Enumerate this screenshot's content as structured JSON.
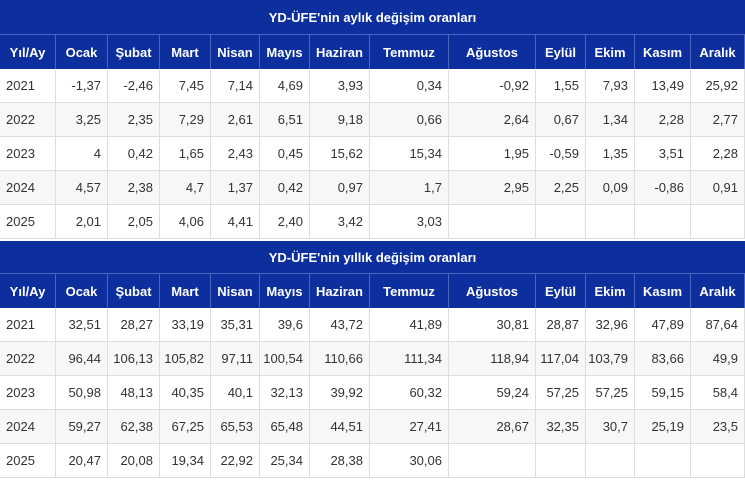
{
  "tables": [
    {
      "title": "YD-ÜFE'nin aylık değişim oranları",
      "headers": [
        "Yıl/Ay",
        "Ocak",
        "Şubat",
        "Mart",
        "Nisan",
        "Mayıs",
        "Haziran",
        "Temmuz",
        "Ağustos",
        "Eylül",
        "Ekim",
        "Kasım",
        "Aralık"
      ],
      "rows": [
        [
          "2021",
          "-1,37",
          "-2,46",
          "7,45",
          "7,14",
          "4,69",
          "3,93",
          "0,34",
          "-0,92",
          "1,55",
          "7,93",
          "13,49",
          "25,92"
        ],
        [
          "2022",
          "3,25",
          "2,35",
          "7,29",
          "2,61",
          "6,51",
          "9,18",
          "0,66",
          "2,64",
          "0,67",
          "1,34",
          "2,28",
          "2,77"
        ],
        [
          "2023",
          "4",
          "0,42",
          "1,65",
          "2,43",
          "0,45",
          "15,62",
          "15,34",
          "1,95",
          "-0,59",
          "1,35",
          "3,51",
          "2,28"
        ],
        [
          "2024",
          "4,57",
          "2,38",
          "4,7",
          "1,37",
          "0,42",
          "0,97",
          "1,7",
          "2,95",
          "2,25",
          "0,09",
          "-0,86",
          "0,91"
        ],
        [
          "2025",
          "2,01",
          "2,05",
          "4,06",
          "4,41",
          "2,40",
          "3,42",
          "3,03",
          "",
          "",
          "",
          "",
          ""
        ]
      ]
    },
    {
      "title": "YD-ÜFE'nin yıllık değişim oranları",
      "headers": [
        "Yıl/Ay",
        "Ocak",
        "Şubat",
        "Mart",
        "Nisan",
        "Mayıs",
        "Haziran",
        "Temmuz",
        "Ağustos",
        "Eylül",
        "Ekim",
        "Kasım",
        "Aralık"
      ],
      "rows": [
        [
          "2021",
          "32,51",
          "28,27",
          "33,19",
          "35,31",
          "39,6",
          "43,72",
          "41,89",
          "30,81",
          "28,87",
          "32,96",
          "47,89",
          "87,64"
        ],
        [
          "2022",
          "96,44",
          "106,13",
          "105,82",
          "97,11",
          "100,54",
          "110,66",
          "111,34",
          "118,94",
          "117,04",
          "103,79",
          "83,66",
          "49,9"
        ],
        [
          "2023",
          "50,98",
          "48,13",
          "40,35",
          "40,1",
          "32,13",
          "39,92",
          "60,32",
          "59,24",
          "57,25",
          "57,25",
          "59,15",
          "58,4"
        ],
        [
          "2024",
          "59,27",
          "62,38",
          "67,25",
          "65,53",
          "65,48",
          "44,51",
          "27,41",
          "28,67",
          "32,35",
          "30,7",
          "25,19",
          "23,5"
        ],
        [
          "2025",
          "20,47",
          "20,08",
          "19,34",
          "22,92",
          "25,34",
          "28,38",
          "30,06",
          "",
          "",
          "",
          "",
          ""
        ]
      ]
    }
  ]
}
